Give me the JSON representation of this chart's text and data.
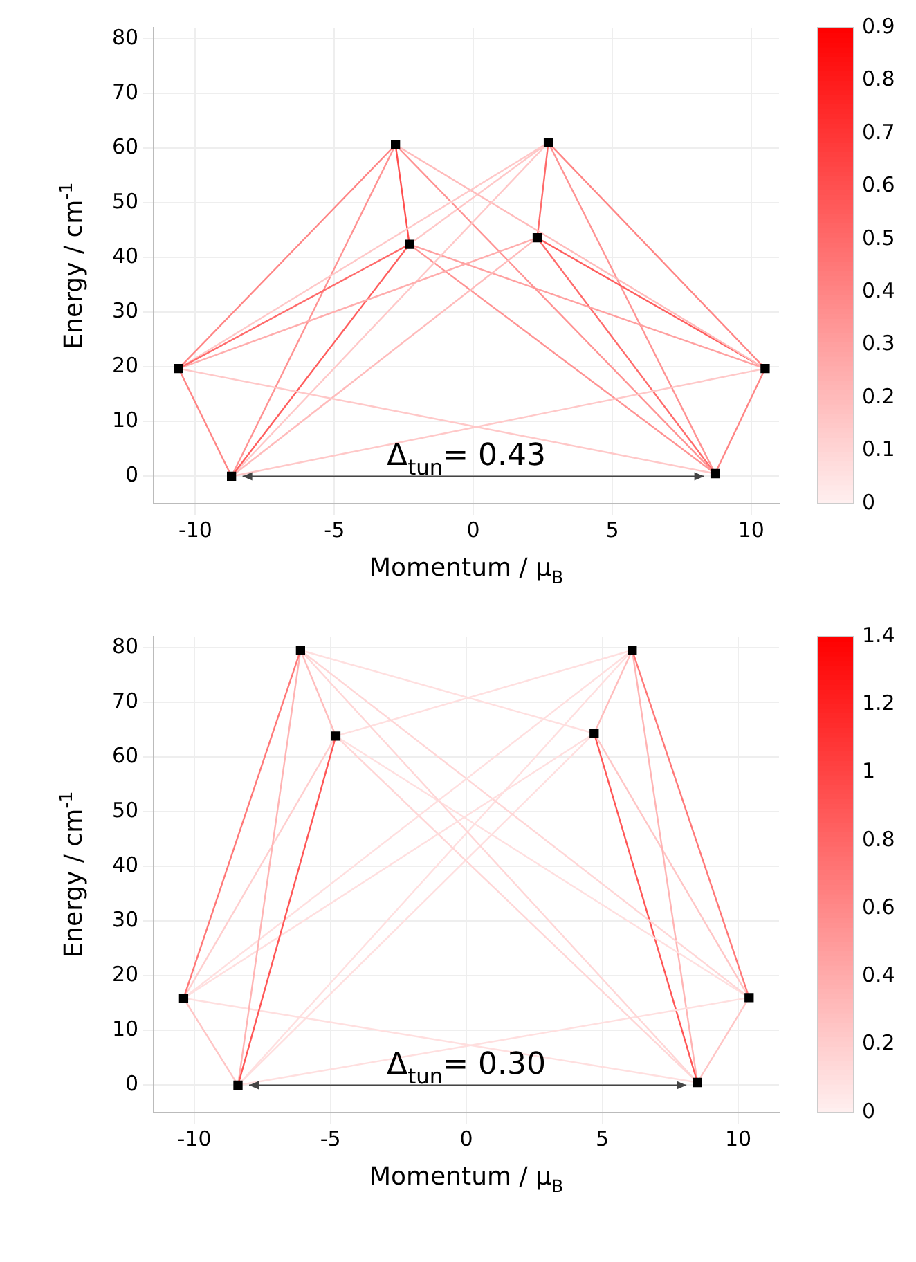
{
  "chart_data": [
    {
      "type": "line",
      "xlabel": "Momentum / μ$_{B}$",
      "ylabel": "Energy / cm$^{-1}$",
      "xlim": [
        -11.5,
        11
      ],
      "xticks": [
        -10,
        -5,
        0,
        5,
        10
      ],
      "ylim": [
        -5,
        82
      ],
      "yticks": [
        0,
        10,
        20,
        30,
        40,
        50,
        60,
        70,
        80
      ],
      "grid": true,
      "clim": [
        0,
        0.9
      ],
      "cticks": [
        0,
        0.1,
        0.2,
        0.3,
        0.4,
        0.5,
        0.6,
        0.7,
        0.8,
        0.9
      ],
      "annotations": [
        "Δ$_{tun}$= 0.43"
      ],
      "series": [
        {
          "type": "line",
          "color": "#ff8585",
          "x": [
            -10.6,
            -8.7
          ],
          "values": [
            19.7,
            0
          ]
        },
        {
          "type": "line",
          "color": "#ff8585",
          "x": [
            -10.6,
            -2.8
          ],
          "values": [
            19.7,
            60.6
          ]
        },
        {
          "type": "line",
          "color": "#ff6b6b",
          "x": [
            -10.6,
            -2.3
          ],
          "values": [
            19.7,
            42.4
          ]
        },
        {
          "type": "line",
          "color": "#ffadad",
          "x": [
            -10.6,
            2.3
          ],
          "values": [
            19.7,
            43.6
          ]
        },
        {
          "type": "line",
          "color": "#ffc8c8",
          "x": [
            -10.6,
            2.7
          ],
          "values": [
            19.7,
            61
          ]
        },
        {
          "type": "line",
          "color": "#ffc8c8",
          "x": [
            -10.6,
            8.7
          ],
          "values": [
            19.7,
            0.5
          ]
        },
        {
          "type": "line",
          "color": "#ff9393",
          "x": [
            -8.7,
            -2.8
          ],
          "values": [
            0,
            60.6
          ]
        },
        {
          "type": "line",
          "color": "#ff5d5d",
          "x": [
            -8.7,
            -2.3
          ],
          "values": [
            0,
            42.4
          ]
        },
        {
          "type": "line",
          "color": "#ffbbbb",
          "x": [
            -8.7,
            2.3
          ],
          "values": [
            0,
            43.6
          ]
        },
        {
          "type": "line",
          "color": "#ffc8c8",
          "x": [
            -8.7,
            2.7
          ],
          "values": [
            0,
            61
          ]
        },
        {
          "type": "line",
          "color": "#ffc8c8",
          "x": [
            -8.7,
            10.5
          ],
          "values": [
            0,
            19.7
          ]
        },
        {
          "type": "line",
          "color": "#ff5050",
          "x": [
            -2.8,
            -2.3
          ],
          "values": [
            60.6,
            42.4
          ]
        },
        {
          "type": "line",
          "color": "#ff9393",
          "x": [
            -2.8,
            8.7
          ],
          "values": [
            60.6,
            0.5
          ]
        },
        {
          "type": "line",
          "color": "#ffbbbb",
          "x": [
            -2.8,
            10.5
          ],
          "values": [
            60.6,
            19.7
          ]
        },
        {
          "type": "line",
          "color": "#ff9393",
          "x": [
            -2.3,
            8.7
          ],
          "values": [
            42.4,
            0.5
          ]
        },
        {
          "type": "line",
          "color": "#ffa0a0",
          "x": [
            -2.3,
            10.5
          ],
          "values": [
            42.4,
            19.7
          ]
        },
        {
          "type": "line",
          "color": "#ffc8c8",
          "x": [
            -2.3,
            2.7
          ],
          "values": [
            42.4,
            61
          ]
        },
        {
          "type": "line",
          "color": "#ff6b6b",
          "x": [
            2.3,
            2.7
          ],
          "values": [
            43.6,
            61
          ]
        },
        {
          "type": "line",
          "color": "#ff5d5d",
          "x": [
            2.3,
            10.5
          ],
          "values": [
            43.6,
            19.7
          ]
        },
        {
          "type": "line",
          "color": "#ff6b6b",
          "x": [
            2.3,
            8.7
          ],
          "values": [
            43.6,
            0.5
          ]
        },
        {
          "type": "line",
          "color": "#ff9393",
          "x": [
            2.7,
            8.7
          ],
          "values": [
            61,
            0.5
          ]
        },
        {
          "type": "line",
          "color": "#ff8585",
          "x": [
            2.7,
            10.5
          ],
          "values": [
            61,
            19.7
          ]
        },
        {
          "type": "line",
          "color": "#ff8585",
          "x": [
            8.7,
            10.5
          ],
          "values": [
            0.5,
            19.7
          ]
        },
        {
          "type": "scatter",
          "color": "#000000",
          "marker": "square",
          "x": [
            -10.6,
            -8.7,
            -2.8,
            -2.3,
            2.3,
            2.7,
            8.7,
            10.5
          ],
          "values": [
            19.7,
            0,
            60.6,
            42.4,
            43.6,
            61,
            0.5,
            19.7
          ]
        }
      ]
    },
    {
      "type": "line",
      "xlabel": "Momentum / μ$_{B}$",
      "ylabel": "Energy / cm$^{-1}$",
      "xlim": [
        -11.5,
        11.5
      ],
      "xticks": [
        -10,
        -5,
        0,
        5,
        10
      ],
      "ylim": [
        -5,
        82
      ],
      "yticks": [
        0,
        10,
        20,
        30,
        40,
        50,
        60,
        70,
        80
      ],
      "grid": true,
      "clim": [
        0,
        1.4
      ],
      "cticks": [
        0,
        0.2,
        0.4,
        0.6,
        0.8,
        1,
        1.2,
        1.4
      ],
      "annotations": [
        "Δ$_{tun}$= 0.30"
      ],
      "series": [
        {
          "type": "line",
          "color": "#ff7878",
          "x": [
            -10.4,
            -6.1
          ],
          "values": [
            15.9,
            79.5
          ]
        },
        {
          "type": "line",
          "color": "#ffc5c5",
          "x": [
            -10.4,
            -8.4
          ],
          "values": [
            15.9,
            0
          ]
        },
        {
          "type": "line",
          "color": "#ff5656",
          "x": [
            -8.4,
            -4.8
          ],
          "values": [
            0,
            63.8
          ]
        },
        {
          "type": "line",
          "color": "#ffb4b4",
          "x": [
            -8.4,
            -6.1
          ],
          "values": [
            0,
            79.5
          ]
        },
        {
          "type": "line",
          "color": "#ffcece",
          "x": [
            -10.4,
            -4.8
          ],
          "values": [
            15.9,
            63.8
          ]
        },
        {
          "type": "line",
          "color": "#ffdfdf",
          "x": [
            -10.4,
            4.7
          ],
          "values": [
            15.9,
            64.3
          ]
        },
        {
          "type": "line",
          "color": "#ffdfdf",
          "x": [
            -10.4,
            6.1
          ],
          "values": [
            15.9,
            79.5
          ]
        },
        {
          "type": "line",
          "color": "#ffdfdf",
          "x": [
            -10.4,
            8.5
          ],
          "values": [
            15.9,
            0.5
          ]
        },
        {
          "type": "line",
          "color": "#ffbdbd",
          "x": [
            -6.1,
            -4.8
          ],
          "values": [
            79.5,
            63.8
          ]
        },
        {
          "type": "line",
          "color": "#ffdfdf",
          "x": [
            -6.1,
            4.7
          ],
          "values": [
            79.5,
            64.3
          ]
        },
        {
          "type": "line",
          "color": "#ffd6d6",
          "x": [
            -6.1,
            8.5
          ],
          "values": [
            79.5,
            0.5
          ]
        },
        {
          "type": "line",
          "color": "#ffd6d6",
          "x": [
            -6.1,
            10.4
          ],
          "values": [
            79.5,
            16
          ]
        },
        {
          "type": "line",
          "color": "#ffdfdf",
          "x": [
            -4.8,
            6.1
          ],
          "values": [
            63.8,
            79.5
          ]
        },
        {
          "type": "line",
          "color": "#ffd6d6",
          "x": [
            -4.8,
            8.5
          ],
          "values": [
            63.8,
            0.5
          ]
        },
        {
          "type": "line",
          "color": "#ffdfdf",
          "x": [
            -4.8,
            10.4
          ],
          "values": [
            63.8,
            16
          ]
        },
        {
          "type": "line",
          "color": "#ffdfdf",
          "x": [
            -8.4,
            4.7
          ],
          "values": [
            0,
            64.3
          ]
        },
        {
          "type": "line",
          "color": "#ffdfdf",
          "x": [
            -8.4,
            6.1
          ],
          "values": [
            0,
            79.5
          ]
        },
        {
          "type": "line",
          "color": "#ffdfdf",
          "x": [
            -8.4,
            10.4
          ],
          "values": [
            0,
            16
          ]
        },
        {
          "type": "line",
          "color": "#ff5656",
          "x": [
            4.7,
            8.5
          ],
          "values": [
            64.3,
            0.5
          ]
        },
        {
          "type": "line",
          "color": "#ff7878",
          "x": [
            6.1,
            10.4
          ],
          "values": [
            79.5,
            16
          ]
        },
        {
          "type": "line",
          "color": "#ffbdbd",
          "x": [
            4.7,
            6.1
          ],
          "values": [
            64.3,
            79.5
          ]
        },
        {
          "type": "line",
          "color": "#ffb4b4",
          "x": [
            6.1,
            8.5
          ],
          "values": [
            79.5,
            0.5
          ]
        },
        {
          "type": "line",
          "color": "#ffc5c5",
          "x": [
            4.7,
            10.4
          ],
          "values": [
            64.3,
            16
          ]
        },
        {
          "type": "line",
          "color": "#ffc5c5",
          "x": [
            8.5,
            10.4
          ],
          "values": [
            0.5,
            16
          ]
        },
        {
          "type": "scatter",
          "color": "#000000",
          "marker": "square",
          "x": [
            -10.4,
            -8.4,
            -6.1,
            -4.8,
            4.7,
            6.1,
            8.5,
            10.4
          ],
          "values": [
            15.9,
            0,
            79.5,
            63.8,
            64.3,
            79.5,
            0.5,
            16
          ]
        }
      ]
    }
  ]
}
